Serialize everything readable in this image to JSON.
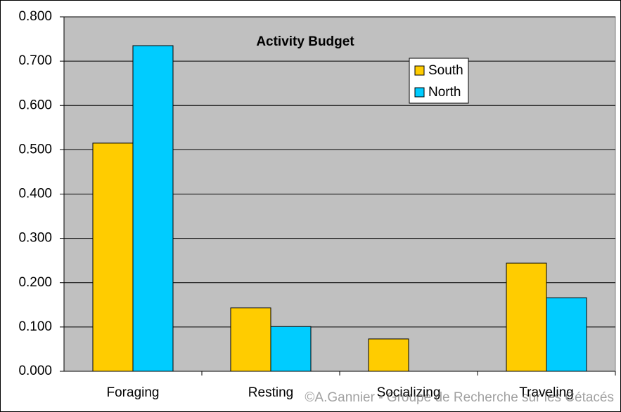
{
  "chart_data": {
    "type": "bar",
    "title": "Activity Budget",
    "categories": [
      "Foraging",
      "Resting",
      "Socializing",
      "Traveling"
    ],
    "series": [
      {
        "name": "South",
        "color": "#ffcc00",
        "values": [
          0.515,
          0.143,
          0.073,
          0.244
        ]
      },
      {
        "name": "North",
        "color": "#00ccff",
        "values": [
          0.735,
          0.101,
          0,
          0.166
        ]
      }
    ],
    "ylim": [
      0,
      0.8
    ],
    "yticks": [
      {
        "value": 0,
        "label": "0.000"
      },
      {
        "value": 0.1,
        "label": "0.100"
      },
      {
        "value": 0.2,
        "label": "0.200"
      },
      {
        "value": 0.3,
        "label": "0.300"
      },
      {
        "value": 0.4,
        "label": "0.400"
      },
      {
        "value": 0.5,
        "label": "0.500"
      },
      {
        "value": 0.6,
        "label": "0.600"
      },
      {
        "value": 0.7,
        "label": "0.700"
      },
      {
        "value": 0.8,
        "label": "0.800"
      }
    ],
    "grid": true,
    "watermark": "©A.Gannier - Groupe de Recherche sur les Cétacés"
  }
}
